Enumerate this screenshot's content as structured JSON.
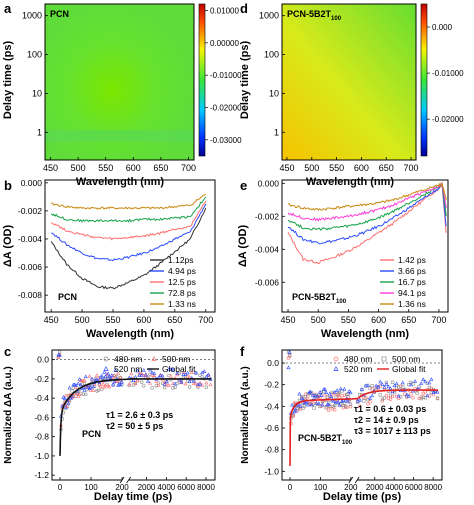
{
  "colors": {
    "blue": "#2c4bff",
    "orange": "#d99a18"
  },
  "panels": [
    {
      "letter": "a",
      "name": "PCN"
    },
    {
      "letter": "d",
      "name": "PCN-5B2T",
      "sub": "100"
    },
    {
      "letter": "b",
      "name": "PCN"
    },
    {
      "letter": "e",
      "name": "PCN-5B2T",
      "sub": "100"
    },
    {
      "letter": "c",
      "name": "PCN",
      "tau_lines": [
        "τ1 = 2.6 ± 0.3 ps",
        "τ2 = 50 ± 5 ps"
      ]
    },
    {
      "letter": "f",
      "name": "PCN-5B2T",
      "sub": "100",
      "tau_lines": [
        "τ1 = 0.6 ± 0.03 ps",
        "τ2 = 14 ± 0.9 ps",
        "τ3 = 1017 ± 113 ps"
      ]
    }
  ],
  "chart_data": [
    {
      "type": "heatmap",
      "panel": "a",
      "xlabel": "Wavelength (nm)",
      "ylabel": "Delay time (ps)",
      "x_ticks": [
        "450",
        "500",
        "550",
        "600",
        "650",
        "700"
      ],
      "y_ticks": [
        "1",
        "10",
        "100",
        "1000"
      ],
      "y_scale": "log",
      "colorbar_ticks": [
        "0.01000",
        "0.00000",
        "-0.01000",
        "-0.02000",
        "-0.03000"
      ],
      "colorbar_range": [
        -0.035,
        0.012
      ]
    },
    {
      "type": "heatmap",
      "panel": "d",
      "xlabel": "Wavelength (nm)",
      "ylabel": "Delay time (ps)",
      "x_ticks": [
        "450",
        "500",
        "550",
        "600",
        "650",
        "700"
      ],
      "y_ticks": [
        "1",
        "10",
        "100",
        "1000"
      ],
      "y_scale": "log",
      "colorbar_ticks": [
        "0.000",
        "-0.01000",
        "-0.02000"
      ],
      "colorbar_range": [
        -0.028,
        0.005
      ]
    },
    {
      "type": "line",
      "panel": "b",
      "xlabel": "Wavelength (nm)",
      "ylabel": "ΔA (OD)",
      "xlim": [
        440,
        715
      ],
      "ylim": [
        -0.0092,
        0.0002
      ],
      "x_ticks": [
        "450",
        "500",
        "550",
        "600",
        "650",
        "700"
      ],
      "y_ticks": [
        "0.000",
        "-0.002",
        "-0.004",
        "-0.006",
        "-0.008"
      ],
      "legend_position": "bottom-right",
      "x": [
        450,
        475,
        500,
        525,
        550,
        575,
        600,
        625,
        650,
        675,
        700
      ],
      "series": [
        {
          "name": "1.12ps",
          "color": "#303030",
          "values": [
            -0.0042,
            -0.0058,
            -0.0068,
            -0.0074,
            -0.0075,
            -0.0071,
            -0.0066,
            -0.0058,
            -0.0049,
            -0.004,
            -0.0018
          ]
        },
        {
          "name": "4.94 ps",
          "color": "#2c4bff",
          "values": [
            -0.0035,
            -0.0044,
            -0.005,
            -0.0054,
            -0.0055,
            -0.0053,
            -0.005,
            -0.0046,
            -0.004,
            -0.0035,
            -0.0015
          ]
        },
        {
          "name": "12.5 ps",
          "color": "#ff6f6f",
          "values": [
            -0.0028,
            -0.0034,
            -0.0037,
            -0.0039,
            -0.004,
            -0.0039,
            -0.0038,
            -0.0036,
            -0.0033,
            -0.0031,
            -0.0013
          ]
        },
        {
          "name": "72.8 ps",
          "color": "#16a34a",
          "values": [
            -0.0022,
            -0.0026,
            -0.0027,
            -0.0027,
            -0.0027,
            -0.0027,
            -0.0026,
            -0.0026,
            -0.0025,
            -0.0024,
            -0.001
          ]
        },
        {
          "name": "1.33 ns",
          "color": "#c98a12",
          "values": [
            -0.0015,
            -0.0017,
            -0.0018,
            -0.0018,
            -0.0018,
            -0.0018,
            -0.0018,
            -0.0018,
            -0.0017,
            -0.0016,
            -0.0008
          ]
        }
      ]
    },
    {
      "type": "line",
      "panel": "e",
      "xlabel": "Wavelength (nm)",
      "ylabel": "ΔA (OD)",
      "xlim": [
        440,
        715
      ],
      "ylim": [
        -0.0078,
        0.0002
      ],
      "x_ticks": [
        "450",
        "500",
        "550",
        "600",
        "650",
        "700"
      ],
      "y_ticks": [
        "0.000",
        "-0.002",
        "-0.004",
        "-0.006"
      ],
      "legend_position": "bottom-right",
      "x": [
        450,
        475,
        500,
        525,
        550,
        575,
        600,
        625,
        650,
        675,
        700,
        705,
        712
      ],
      "series": [
        {
          "name": "1.42 ps",
          "color": "#ff6f6f",
          "values": [
            -0.003,
            -0.0046,
            -0.0048,
            -0.0045,
            -0.0041,
            -0.0036,
            -0.003,
            -0.0024,
            -0.0017,
            -0.001,
            -0.0003,
            0.0,
            -0.003
          ]
        },
        {
          "name": "3.66 ps",
          "color": "#2c4bff",
          "values": [
            -0.0026,
            -0.0034,
            -0.0036,
            -0.0035,
            -0.0033,
            -0.003,
            -0.0026,
            -0.0021,
            -0.0015,
            -0.0009,
            -0.0003,
            0.0,
            -0.0026
          ]
        },
        {
          "name": "16.7 ps",
          "color": "#16a34a",
          "values": [
            -0.0022,
            -0.0027,
            -0.0028,
            -0.0027,
            -0.0026,
            -0.0024,
            -0.0021,
            -0.0017,
            -0.0012,
            -0.0007,
            -0.0002,
            0.0,
            -0.002
          ]
        },
        {
          "name": "94.1 ps",
          "color": "#ff3bd9",
          "values": [
            -0.0018,
            -0.0021,
            -0.0022,
            -0.0021,
            -0.002,
            -0.0018,
            -0.0016,
            -0.0013,
            -0.0009,
            -0.0005,
            -0.0002,
            0.0,
            -0.0015
          ]
        },
        {
          "name": "1.36 ns",
          "color": "#c98a12",
          "values": [
            -0.0013,
            -0.0015,
            -0.0016,
            -0.0015,
            -0.0014,
            -0.0013,
            -0.0012,
            -0.001,
            -0.0007,
            -0.0004,
            -0.0001,
            0.0,
            -0.001
          ]
        }
      ]
    },
    {
      "type": "scatter",
      "panel": "c",
      "xlabel": "Delay time (ps)",
      "ylabel": "Normalized ΔA (a.u.)",
      "x_ticks": [
        "0",
        "100",
        "200",
        "2000",
        "4000",
        "6000",
        "8000"
      ],
      "y_ticks": [
        "0.0",
        "-0.2",
        "-0.4",
        "-0.6",
        "-0.8",
        "-1.0",
        "-1.2"
      ],
      "ylim": [
        -1.25,
        0.1
      ],
      "legend_position": "top",
      "series": [
        {
          "name": "480 nm",
          "color": "#8a8a8a",
          "marker": "circle"
        },
        {
          "name": "500 nm",
          "color": "#ff6f6f",
          "marker": "triangle"
        },
        {
          "name": "520 nm",
          "color": "#2c4bff",
          "marker": "triangle"
        },
        {
          "name": "Global fit",
          "color": "#111111",
          "marker": "line"
        }
      ],
      "fit_tau_ps": [
        2.6,
        50
      ],
      "fit_amplitudes": [
        -0.45,
        -0.35
      ],
      "fit_offset": -0.2
    },
    {
      "type": "scatter",
      "panel": "f",
      "xlabel": "Delay time (ps)",
      "ylabel": "Normalized ΔA (a.u.)",
      "x_ticks": [
        "0",
        "100",
        "200",
        "2000",
        "4000",
        "6000",
        "8000"
      ],
      "y_ticks": [
        "0.0",
        "-0.2",
        "-0.4",
        "-0.6",
        "-0.8",
        "-1.0"
      ],
      "ylim": [
        -1.08,
        0.12
      ],
      "legend_position": "top",
      "series": [
        {
          "name": "480 nm",
          "color": "#ff6f6f",
          "marker": "circle"
        },
        {
          "name": "500 nm",
          "color": "#8a8a8a",
          "marker": "square"
        },
        {
          "name": "520 nm",
          "color": "#2c4bff",
          "marker": "triangle"
        },
        {
          "name": "Global fit",
          "color": "#e02020",
          "marker": "line"
        }
      ],
      "fit_tau_ps": [
        0.6,
        14,
        1017
      ],
      "fit_amplitudes": [
        -0.45,
        -0.15,
        -0.1
      ],
      "fit_offset": -0.25
    }
  ]
}
